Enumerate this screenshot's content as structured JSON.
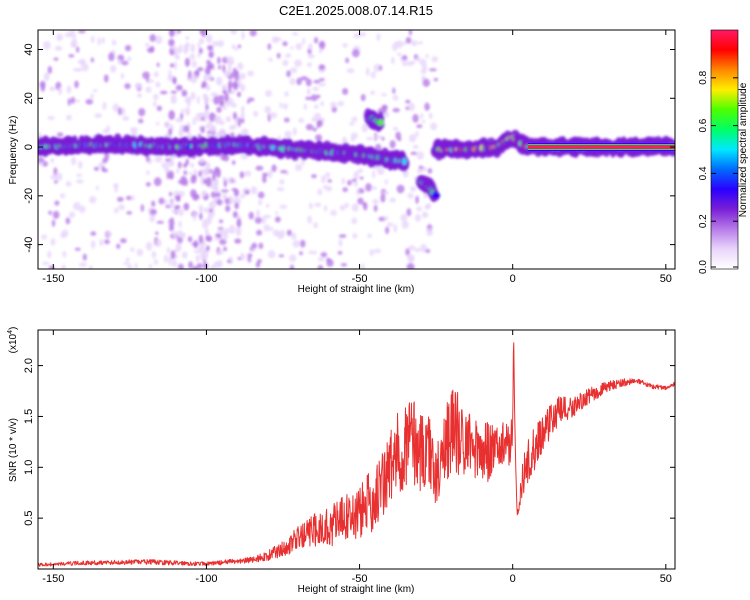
{
  "title": "C2E1.2025.008.07.14.R15",
  "chart_data": [
    {
      "type": "heatmap",
      "xlabel": "Height of straight line (km)",
      "ylabel": "Frequency (Hz)",
      "xlim": [
        -155,
        53
      ],
      "ylim": [
        -50,
        48
      ],
      "xticks": [
        -150,
        -100,
        -50,
        0,
        50
      ],
      "yticks": [
        -40,
        -20,
        0,
        20,
        40
      ],
      "colorbar": {
        "label": "Normalized spectral amplitude",
        "range": [
          0,
          1
        ],
        "ticks": [
          "0.0",
          "0.2",
          "0.4",
          "0.6",
          "0.8"
        ],
        "colors": [
          "#ffffff",
          "#e9d6fb",
          "#b77be8",
          "#7a1fd6",
          "#2a00ff",
          "#006bff",
          "#00e8ff",
          "#00ff66",
          "#4dff00",
          "#ffee00",
          "#ff8800",
          "#ff0000",
          "#ff1a66"
        ]
      },
      "ridge_segments": [
        {
          "x": [
            -155,
            -130,
            -110,
            -90,
            -80,
            -70,
            -60,
            -50,
            -40,
            -35
          ],
          "y": [
            0,
            1,
            0,
            1,
            0,
            -1,
            -2,
            -3,
            -5,
            -6
          ]
        },
        {
          "x": [
            -47,
            -45,
            -43
          ],
          "y": [
            12,
            11,
            10
          ]
        },
        {
          "x": [
            -30,
            -28,
            -26,
            -25
          ],
          "y": [
            -14,
            -16,
            -18,
            -20
          ]
        },
        {
          "x": [
            -25,
            -15,
            -5,
            0,
            5,
            15,
            25,
            40,
            53
          ],
          "y": [
            -1,
            -1,
            0,
            4,
            0,
            0,
            0,
            0,
            0
          ]
        }
      ]
    },
    {
      "type": "line",
      "xlabel": "Height of straight line (km)",
      "ylabel": "SNR (10 * v/v)",
      "yscale_label": "(x10",
      "yscale_exponent": "4",
      "yscale_suffix": ")",
      "xlim": [
        -155,
        53
      ],
      "ylim": [
        0,
        23500
      ],
      "xticks": [
        -150,
        -100,
        -50,
        0,
        50
      ],
      "yticks": [
        5000,
        10000,
        15000,
        20000
      ],
      "ytick_labels": [
        "0.5",
        "1.0",
        "1.5",
        "2.0"
      ],
      "series": [
        {
          "color": "#e83030",
          "x": [
            -155,
            -140,
            -120,
            -100,
            -85,
            -80,
            -75,
            -70,
            -65,
            -60,
            -55,
            -50,
            -47,
            -45,
            -42,
            -40,
            -38,
            -35,
            -33,
            -30,
            -28,
            -26,
            -25,
            -23,
            -21,
            -19,
            -17,
            -15,
            -12,
            -10,
            -8,
            -6,
            -5,
            -4,
            -3,
            -2,
            -1,
            0,
            0.3,
            0.6,
            1,
            1.5,
            2,
            2.5,
            3,
            5,
            8,
            10,
            12,
            15,
            18,
            20,
            25,
            30,
            35,
            40,
            45,
            50,
            53
          ],
          "y": [
            400,
            600,
            700,
            500,
            900,
            1300,
            2000,
            3000,
            3800,
            4200,
            5000,
            5500,
            6500,
            7000,
            8500,
            10000,
            11000,
            12500,
            13000,
            11500,
            12000,
            10500,
            9000,
            11000,
            13500,
            13500,
            13000,
            12500,
            12000,
            11500,
            11500,
            11800,
            12000,
            12200,
            12500,
            12300,
            12000,
            14000,
            23500,
            16000,
            10000,
            5000,
            6000,
            7500,
            9000,
            10500,
            12500,
            13500,
            14500,
            15500,
            15700,
            16000,
            17000,
            17800,
            18300,
            18500,
            18000,
            17800,
            18200
          ],
          "noise_amplitude": [
            150,
            200,
            250,
            200,
            300,
            500,
            800,
            1200,
            1600,
            2000,
            2400,
            2800,
            3000,
            3200,
            3600,
            4000,
            4200,
            4500,
            4500,
            4200,
            4000,
            3600,
            3000,
            3500,
            4500,
            4500,
            4000,
            3600,
            3200,
            3000,
            3000,
            2800,
            2500,
            2500,
            2000,
            2000,
            2000,
            1500,
            0,
            0,
            0,
            500,
            1000,
            1500,
            2000,
            2200,
            2200,
            2000,
            1800,
            1500,
            1200,
            1000,
            800,
            600,
            400,
            300,
            250,
            200,
            200
          ]
        }
      ]
    }
  ]
}
